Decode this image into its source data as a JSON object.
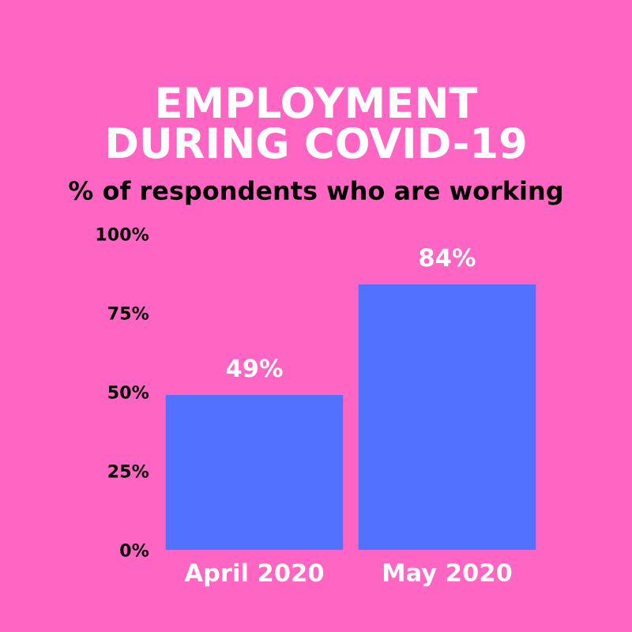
{
  "chart_data": {
    "type": "bar",
    "title": "EMPLOYMENT\nDURING COVID-19",
    "subtitle": "% of respondents who are working",
    "categories": [
      "April 2020",
      "May 2020"
    ],
    "values": [
      49,
      84
    ],
    "color": "#5271ff",
    "value_labels": [
      "49%",
      "84%"
    ],
    "ylim": [
      0,
      100
    ],
    "yticks": [
      {
        "value": 0,
        "label": "0%"
      },
      {
        "value": 25,
        "label": "25%"
      },
      {
        "value": 50,
        "label": "50%"
      },
      {
        "value": 75,
        "label": "75%"
      },
      {
        "value": 100,
        "label": "100%"
      }
    ],
    "grid": false,
    "legend": false
  }
}
